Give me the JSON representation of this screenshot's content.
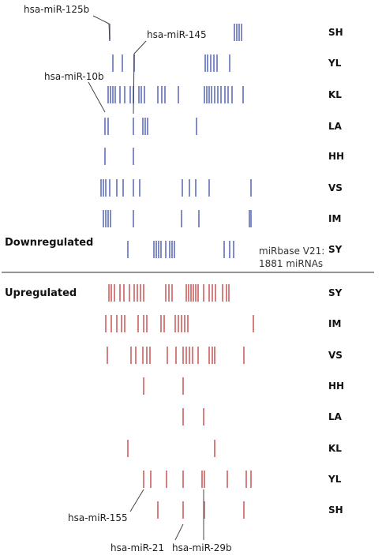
{
  "colors": {
    "down": "#7f8cc8",
    "up": "#d77f7f",
    "leader": "#444444",
    "divider": "#555555"
  },
  "sections": {
    "down_label": "Downregulated",
    "up_label": "Upregulated"
  },
  "note": {
    "line1": "miRbase V21:",
    "line2": "1881 miRNAs"
  },
  "callouts": {
    "mir125b": "hsa-miR-125b",
    "mir145": "hsa-miR-145",
    "mir10b": "hsa-miR-10b",
    "mir155": "hsa-miR-155",
    "mir21": "hsa-miR-21",
    "mir29b": "hsa-miR-29b"
  },
  "chart_data": {
    "type": "rug",
    "down_rows": [
      {
        "label": "SH",
        "ticks": [
          139,
          297,
          300,
          303,
          306
        ]
      },
      {
        "label": "YL",
        "ticks": [
          143,
          155,
          170,
          260,
          263,
          267,
          271,
          275,
          291
        ]
      },
      {
        "label": "KL",
        "ticks": [
          137,
          140,
          143,
          146,
          152,
          158,
          165,
          169,
          176,
          179,
          183,
          200,
          205,
          209,
          226,
          259,
          262,
          265,
          268,
          272,
          276,
          280,
          285,
          289,
          294,
          308
        ]
      },
      {
        "label": "LA",
        "ticks": [
          133,
          137,
          169,
          181,
          184,
          187,
          249
        ]
      },
      {
        "label": "HH",
        "ticks": [
          133,
          169
        ]
      },
      {
        "label": "VS",
        "ticks": [
          128,
          131,
          134,
          139,
          148,
          156,
          169,
          177,
          231,
          240,
          248,
          265,
          318
        ]
      },
      {
        "label": "IM",
        "ticks": [
          131,
          134,
          137,
          140,
          169,
          230,
          252,
          316,
          318
        ]
      },
      {
        "label": "SY",
        "ticks": [
          162,
          195,
          198,
          201,
          204,
          210,
          215,
          218,
          221,
          284,
          291,
          296
        ]
      }
    ],
    "up_rows": [
      {
        "label": "SY",
        "ticks": [
          138,
          141,
          145,
          152,
          157,
          164,
          170,
          174,
          178,
          182,
          210,
          214,
          218,
          236,
          239,
          242,
          245,
          248,
          251,
          258,
          265,
          269,
          273,
          282,
          287,
          290
        ]
      },
      {
        "label": "IM",
        "ticks": [
          134,
          141,
          148,
          154,
          158,
          175,
          182,
          186,
          204,
          208,
          222,
          226,
          230,
          234,
          238,
          321
        ]
      },
      {
        "label": "VS",
        "ticks": [
          136,
          166,
          172,
          181,
          186,
          190,
          212,
          223,
          232,
          236,
          240,
          244,
          251,
          265,
          269,
          272,
          309
        ]
      },
      {
        "label": "HH",
        "ticks": [
          182,
          232
        ]
      },
      {
        "label": "LA",
        "ticks": [
          232,
          258
        ]
      },
      {
        "label": "KL",
        "ticks": [
          162,
          272
        ]
      },
      {
        "label": "YL",
        "ticks": [
          182,
          191,
          211,
          232,
          256,
          259,
          288,
          312,
          318
        ]
      },
      {
        "label": "SH",
        "ticks": [
          200,
          232,
          259,
          309
        ]
      }
    ]
  }
}
